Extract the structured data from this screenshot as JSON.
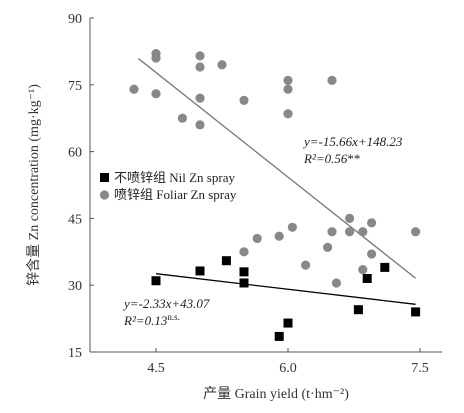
{
  "chart_data": {
    "type": "scatter",
    "xlabel_cn": "产量",
    "xlabel_en": "Grain yield",
    "xlabel_unit": "(t·hm⁻²)",
    "ylabel_cn": "锌含量",
    "ylabel_en": "Zn concentration",
    "ylabel_unit": "(mg·kg⁻¹)",
    "xlim": [
      3.75,
      7.75
    ],
    "ylim": [
      15,
      90
    ],
    "xticks": [
      4.5,
      6.0,
      7.5
    ],
    "xtick_labels": [
      "4.5",
      "6.0",
      "7.5"
    ],
    "yticks": [
      15,
      30,
      45,
      60,
      75,
      90
    ],
    "ytick_labels": [
      "15",
      "30",
      "45",
      "60",
      "75",
      "90"
    ],
    "legend_position": "middle-left",
    "series": [
      {
        "name": "不喷锌组 Nil Zn spray",
        "marker": "square",
        "color": "#000000",
        "points": [
          [
            4.5,
            31.0
          ],
          [
            5.0,
            33.2
          ],
          [
            5.3,
            35.5
          ],
          [
            5.5,
            33.0
          ],
          [
            5.5,
            30.5
          ],
          [
            5.9,
            18.5
          ],
          [
            6.0,
            21.5
          ],
          [
            6.8,
            24.5
          ],
          [
            6.9,
            31.5
          ],
          [
            7.1,
            34.0
          ],
          [
            7.45,
            24.0
          ]
        ],
        "fit": {
          "slope": -2.33,
          "intercept": 43.07,
          "x_range": [
            4.5,
            7.45
          ]
        },
        "equation_y": "y=-2.33x+43.07",
        "equation_r2": "R²=0.13",
        "equation_sig": "n.s."
      },
      {
        "name": "喷锌组 Foliar Zn spray",
        "marker": "circle",
        "color": "#888888",
        "points": [
          [
            4.25,
            74.0
          ],
          [
            4.5,
            82.0
          ],
          [
            4.5,
            81.0
          ],
          [
            4.5,
            73.0
          ],
          [
            4.8,
            67.5
          ],
          [
            5.0,
            81.5
          ],
          [
            5.0,
            79.0
          ],
          [
            5.0,
            72.0
          ],
          [
            5.0,
            66.0
          ],
          [
            5.25,
            79.5
          ],
          [
            5.5,
            71.5
          ],
          [
            6.0,
            76.0
          ],
          [
            6.0,
            74.0
          ],
          [
            6.0,
            68.5
          ],
          [
            6.5,
            76.0
          ],
          [
            5.5,
            37.5
          ],
          [
            5.65,
            40.5
          ],
          [
            5.9,
            41.0
          ],
          [
            6.05,
            43.0
          ],
          [
            6.2,
            34.5
          ],
          [
            6.45,
            38.5
          ],
          [
            6.5,
            42.0
          ],
          [
            6.55,
            30.5
          ],
          [
            6.7,
            45.0
          ],
          [
            6.7,
            42.0
          ],
          [
            6.85,
            33.5
          ],
          [
            6.85,
            42.0
          ],
          [
            6.95,
            44.0
          ],
          [
            6.95,
            37.0
          ],
          [
            7.45,
            42.0
          ]
        ],
        "fit": {
          "slope": -15.66,
          "intercept": 148.23,
          "x_range": [
            4.3,
            7.45
          ]
        },
        "equation_y": "y=-15.66x+148.23",
        "equation_r2": "R²=0.56",
        "equation_sig": "**"
      }
    ]
  }
}
